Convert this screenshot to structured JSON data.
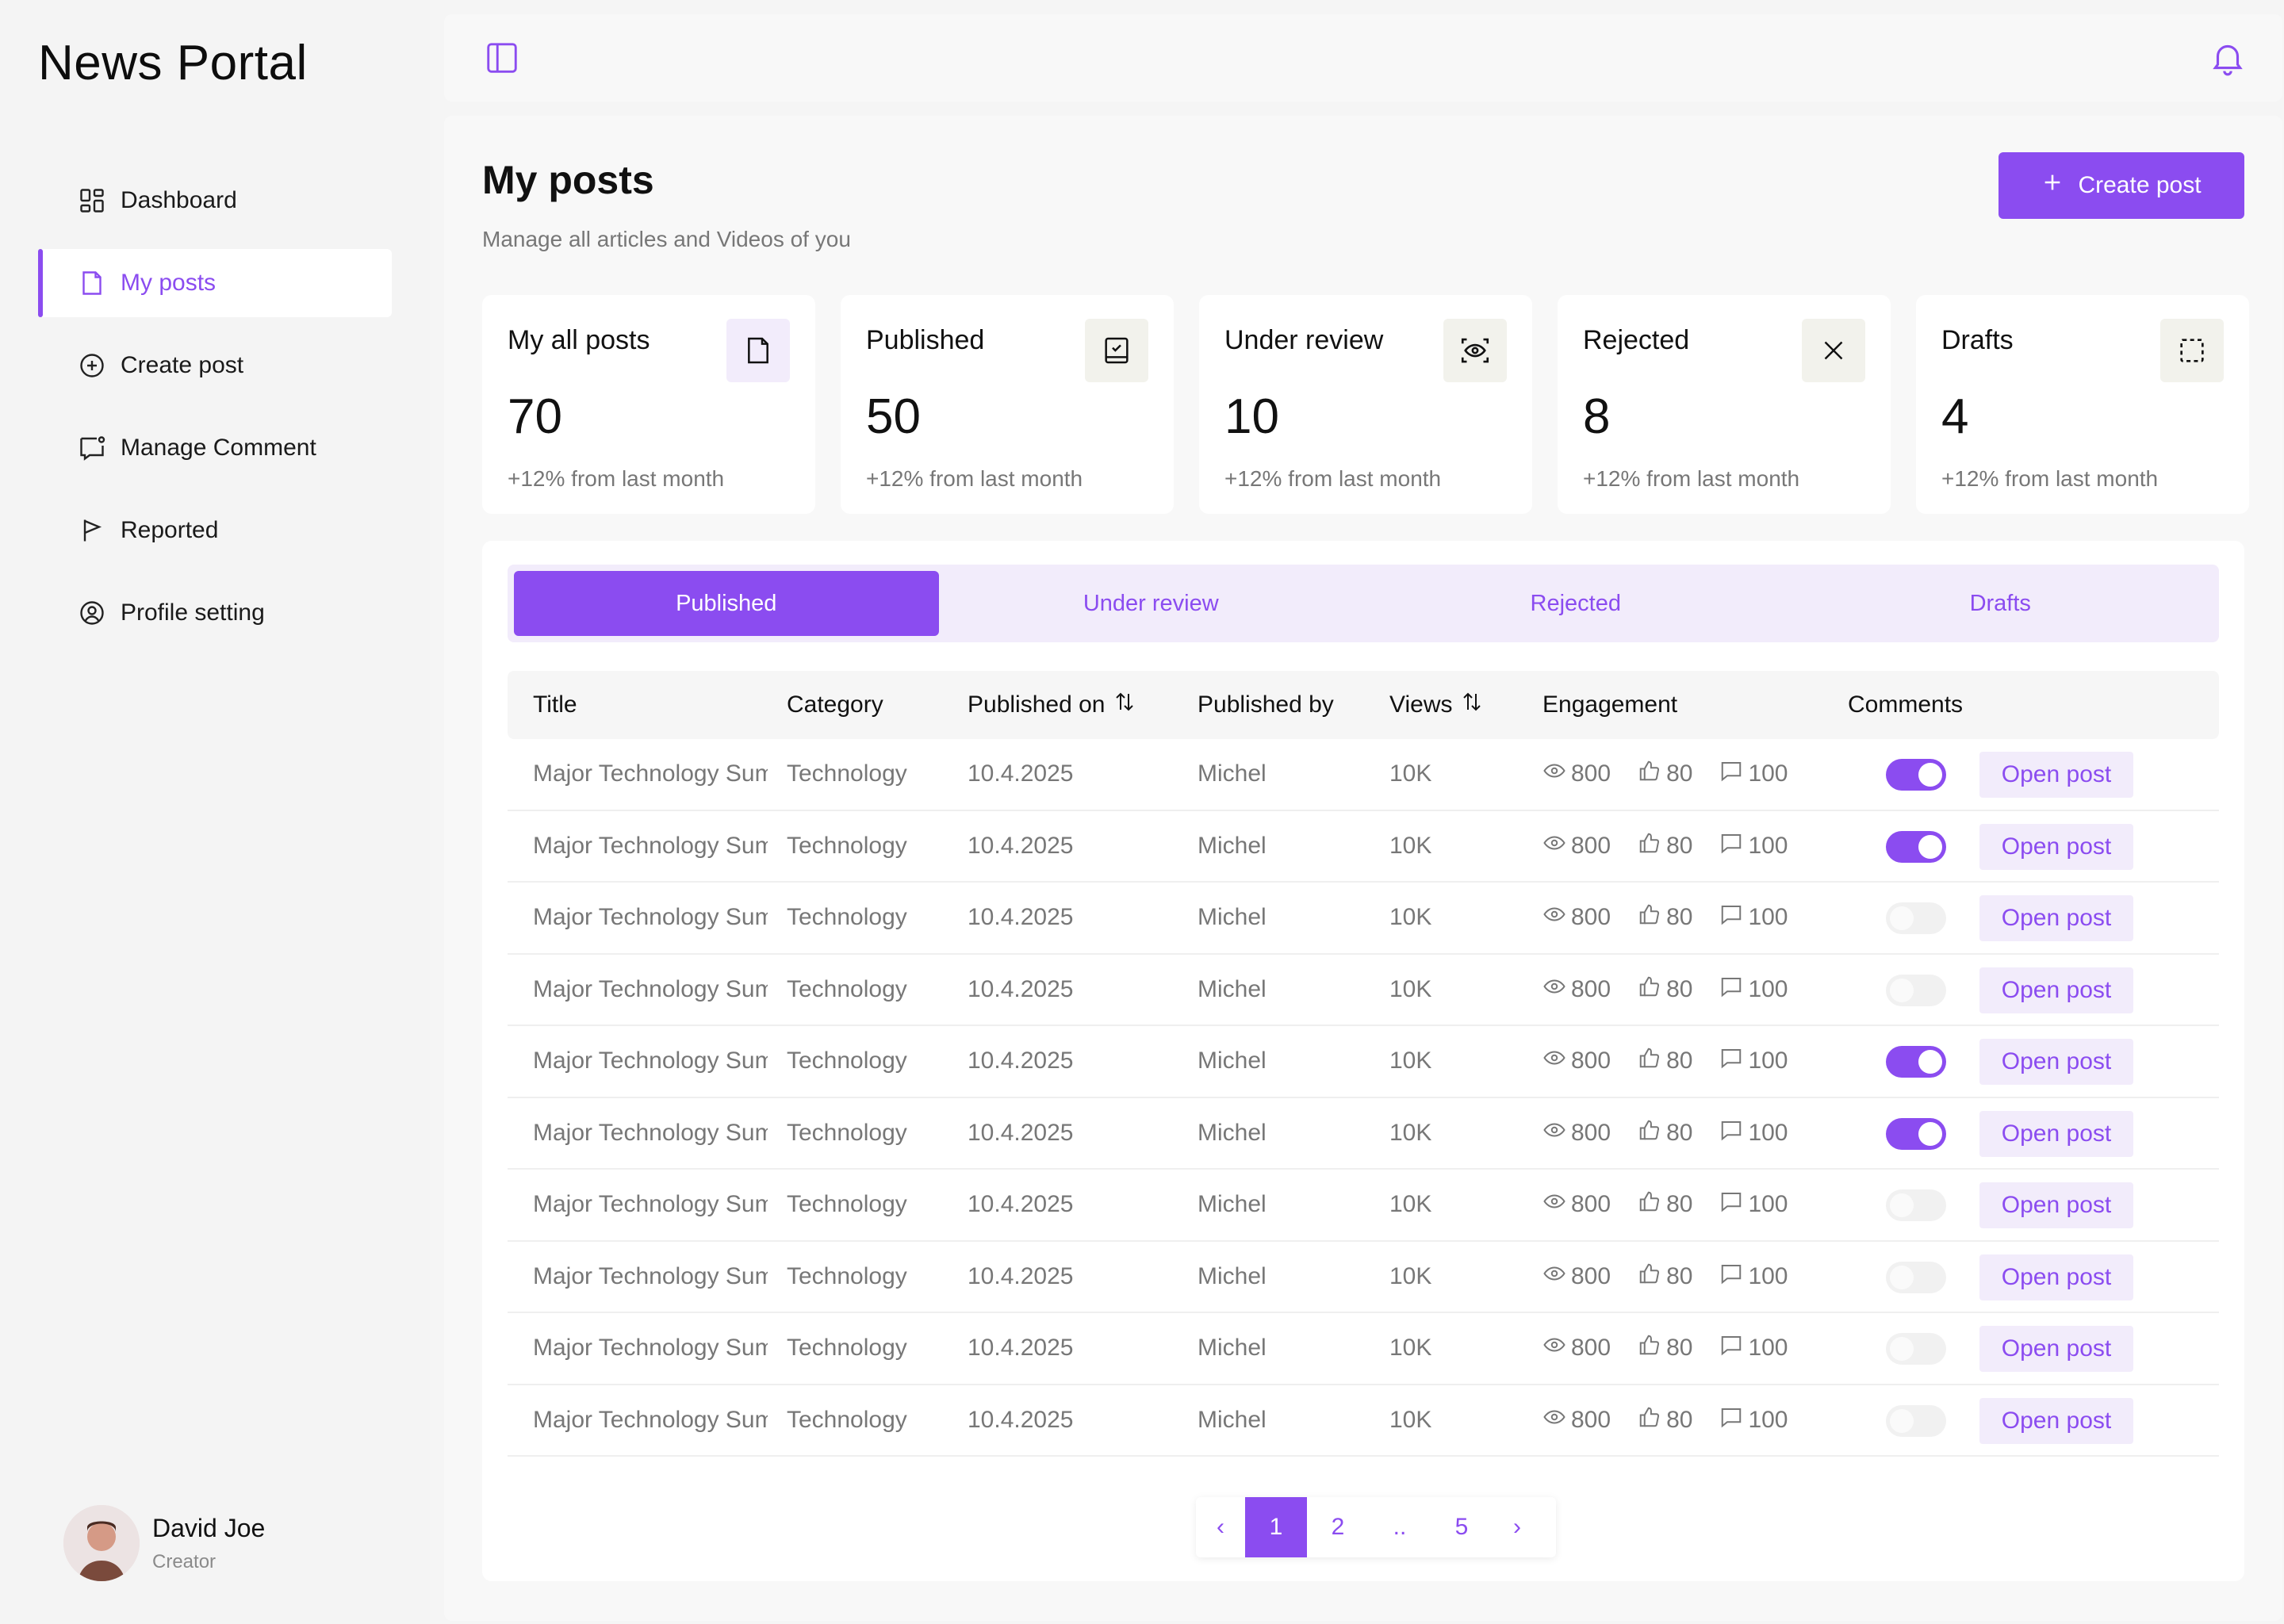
{
  "app": {
    "title": "News Portal"
  },
  "sidebar": {
    "items": [
      {
        "label": "Dashboard",
        "icon": "dashboard-icon"
      },
      {
        "label": "My posts",
        "icon": "document-icon",
        "active": true
      },
      {
        "label": "Create post",
        "icon": "plus-circle-icon"
      },
      {
        "label": "Manage Comment",
        "icon": "comment-icon"
      },
      {
        "label": "Reported",
        "icon": "flag-icon"
      },
      {
        "label": "Profile setting",
        "icon": "user-circle-icon"
      }
    ],
    "user": {
      "name": "David Joe",
      "role": "Creator"
    }
  },
  "header": {
    "title": "My posts",
    "subtitle": "Manage all articles and Videos of you",
    "create_label": "Create post"
  },
  "stats": [
    {
      "label": "My all posts",
      "value": "70",
      "change": "+12% from last month",
      "icon": "document-icon"
    },
    {
      "label": "Published",
      "value": "50",
      "change": "+12% from last month",
      "icon": "book-check-icon"
    },
    {
      "label": "Under review",
      "value": "10",
      "change": "+12% from last month",
      "icon": "eye-scan-icon"
    },
    {
      "label": "Rejected",
      "value": "8",
      "change": "+12% from last month",
      "icon": "close-icon"
    },
    {
      "label": "Drafts",
      "value": "4",
      "change": "+12% from last month",
      "icon": "dashed-square-icon"
    }
  ],
  "tabs": [
    "Published",
    "Under review",
    "Rejected",
    "Drafts"
  ],
  "table": {
    "headers": [
      "Title",
      "Category",
      "Published on",
      "Published by",
      "Views",
      "Engagement",
      "Comments"
    ],
    "rows": [
      {
        "title": "Major Technology Summit",
        "category": "Technology",
        "date": "10.4.2025",
        "by": "Michel",
        "views": "10K",
        "eye": "800",
        "likes": "80",
        "comments": "100",
        "enabled": true,
        "action": "Open post"
      },
      {
        "title": "Major Technology Summit",
        "category": "Technology",
        "date": "10.4.2025",
        "by": "Michel",
        "views": "10K",
        "eye": "800",
        "likes": "80",
        "comments": "100",
        "enabled": true,
        "action": "Open post"
      },
      {
        "title": "Major Technology Summit",
        "category": "Technology",
        "date": "10.4.2025",
        "by": "Michel",
        "views": "10K",
        "eye": "800",
        "likes": "80",
        "comments": "100",
        "enabled": false,
        "action": "Open post"
      },
      {
        "title": "Major Technology Summit",
        "category": "Technology",
        "date": "10.4.2025",
        "by": "Michel",
        "views": "10K",
        "eye": "800",
        "likes": "80",
        "comments": "100",
        "enabled": false,
        "action": "Open post"
      },
      {
        "title": "Major Technology Summit",
        "category": "Technology",
        "date": "10.4.2025",
        "by": "Michel",
        "views": "10K",
        "eye": "800",
        "likes": "80",
        "comments": "100",
        "enabled": true,
        "action": "Open post"
      },
      {
        "title": "Major Technology Summit",
        "category": "Technology",
        "date": "10.4.2025",
        "by": "Michel",
        "views": "10K",
        "eye": "800",
        "likes": "80",
        "comments": "100",
        "enabled": true,
        "action": "Open post"
      },
      {
        "title": "Major Technology Summit",
        "category": "Technology",
        "date": "10.4.2025",
        "by": "Michel",
        "views": "10K",
        "eye": "800",
        "likes": "80",
        "comments": "100",
        "enabled": false,
        "action": "Open post"
      },
      {
        "title": "Major Technology Summit",
        "category": "Technology",
        "date": "10.4.2025",
        "by": "Michel",
        "views": "10K",
        "eye": "800",
        "likes": "80",
        "comments": "100",
        "enabled": false,
        "action": "Open post"
      },
      {
        "title": "Major Technology Summit",
        "category": "Technology",
        "date": "10.4.2025",
        "by": "Michel",
        "views": "10K",
        "eye": "800",
        "likes": "80",
        "comments": "100",
        "enabled": false,
        "action": "Open post"
      },
      {
        "title": "Major Technology Summit",
        "category": "Technology",
        "date": "10.4.2025",
        "by": "Michel",
        "views": "10K",
        "eye": "800",
        "likes": "80",
        "comments": "100",
        "enabled": false,
        "action": "Open post"
      }
    ]
  },
  "pagination": {
    "prev": "‹",
    "pages": [
      "1",
      "2",
      "..",
      "5"
    ],
    "current": "1",
    "next": "›"
  },
  "colors": {
    "accent": "#8b4cf0",
    "accent_light": "#f2ecfb"
  }
}
